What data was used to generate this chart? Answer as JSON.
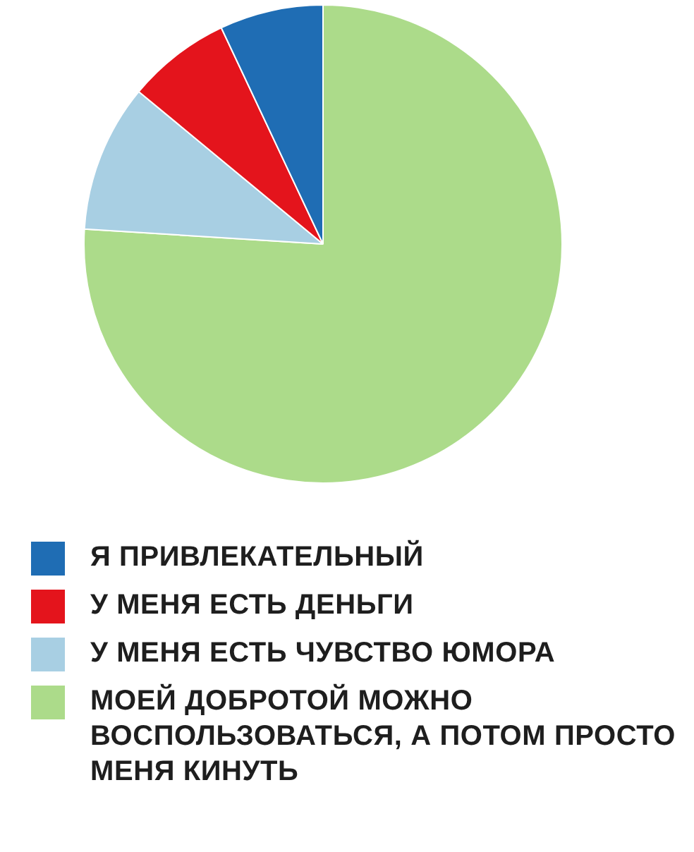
{
  "chart_data": {
    "type": "pie",
    "categories": [
      "Я ПРИВЛЕКАТЕЛЬНЫЙ",
      "У МЕНЯ ЕСТЬ ДЕНЬГИ",
      "У МЕНЯ ЕСТЬ ЧУВСТВО ЮМОРА",
      "МОЕЙ ДОБРОТОЙ МОЖНО ВОСПОЛЬЗОВАТЬСЯ, А ПОТОМ ПРОСТО МЕНЯ КИНУТЬ"
    ],
    "values": [
      7,
      7,
      10,
      76
    ],
    "colors": [
      "#1f6db4",
      "#e4141c",
      "#a8cfe3",
      "#acdb8a"
    ],
    "legend": "bottom"
  }
}
